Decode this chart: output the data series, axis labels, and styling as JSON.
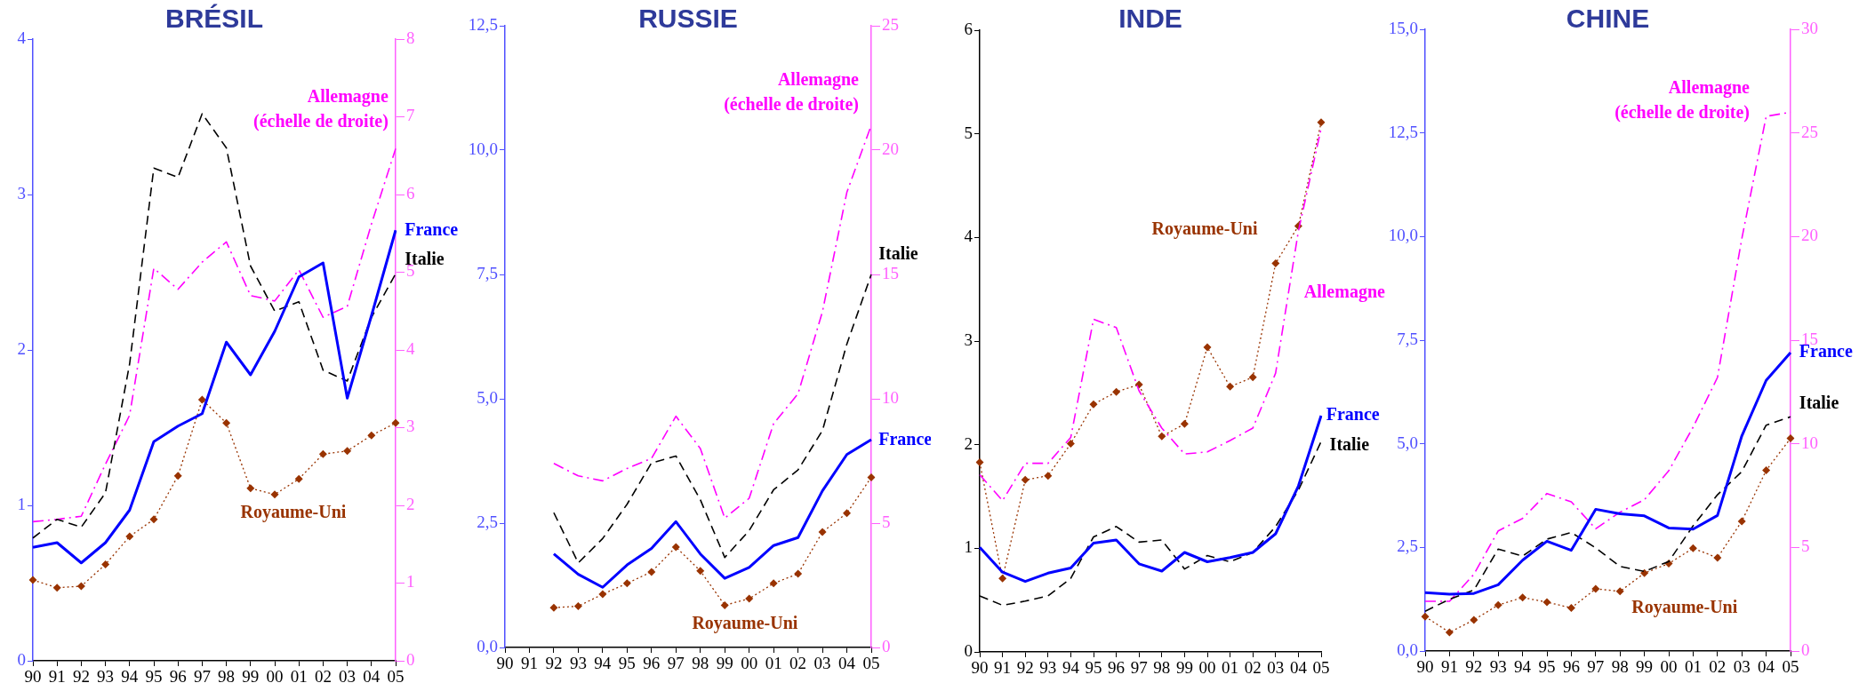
{
  "chart_data": [
    {
      "type": "line",
      "title": "BRÉSIL",
      "categories": [
        "90",
        "91",
        "92",
        "93",
        "94",
        "95",
        "96",
        "97",
        "98",
        "99",
        "00",
        "01",
        "02",
        "03",
        "04",
        "05"
      ],
      "ylim": [
        0,
        4
      ],
      "yticks": [
        0,
        1,
        2,
        3,
        4
      ],
      "y2lim": [
        0,
        8
      ],
      "y2ticks": [
        0,
        1,
        2,
        3,
        4,
        5,
        6,
        7,
        8
      ],
      "grid": false,
      "legend": false,
      "series": [
        {
          "name": "France",
          "color": "#0000ff",
          "line_style": "solid",
          "marker": "none",
          "values": [
            0.73,
            0.76,
            0.63,
            0.76,
            0.97,
            1.41,
            1.51,
            1.59,
            2.05,
            1.84,
            2.12,
            2.47,
            2.56,
            1.69,
            2.22,
            2.77
          ]
        },
        {
          "name": "Italie",
          "color": "#000000",
          "line_style": "dashed",
          "marker": "none",
          "values": [
            0.79,
            0.91,
            0.86,
            1.08,
            1.91,
            3.17,
            3.11,
            3.52,
            3.3,
            2.54,
            2.25,
            2.31,
            1.87,
            1.8,
            2.21,
            2.49
          ]
        },
        {
          "name": "Allemagne (échelle de droite)",
          "color": "#ff00ff",
          "line_style": "dashdot",
          "marker": "none",
          "axis": "y2",
          "values": [
            1.79,
            1.82,
            1.86,
            2.53,
            3.16,
            5.05,
            4.78,
            5.13,
            5.39,
            4.7,
            4.63,
            5.03,
            4.42,
            4.56,
            5.62,
            6.59
          ]
        },
        {
          "name": "Royaume-Uni",
          "color": "#993300",
          "line_style": "dotted",
          "marker": "diamond",
          "values": [
            0.52,
            0.47,
            0.48,
            0.62,
            0.8,
            0.91,
            1.19,
            1.68,
            1.53,
            1.11,
            1.07,
            1.17,
            1.33,
            1.35,
            1.45,
            1.53
          ]
        }
      ]
    },
    {
      "type": "line",
      "title": "RUSSIE",
      "categories": [
        "90",
        "91",
        "92",
        "93",
        "94",
        "95",
        "96",
        "97",
        "98",
        "99",
        "00",
        "01",
        "02",
        "03",
        "04",
        "05"
      ],
      "ylim": [
        0,
        12.5
      ],
      "yticks": [
        {
          "value": 0,
          "label": "0,0"
        },
        {
          "value": 2.5,
          "label": "2,5"
        },
        {
          "value": 5,
          "label": "5,0"
        },
        {
          "value": 7.5,
          "label": "7,5"
        },
        {
          "value": 10,
          "label": "10,0"
        },
        {
          "value": 12.5,
          "label": "12,5"
        }
      ],
      "y2lim": [
        0,
        25
      ],
      "y2ticks": [
        0,
        5,
        10,
        15,
        20,
        25
      ],
      "grid": false,
      "legend": false,
      "series": [
        {
          "name": "France",
          "color": "#0000ff",
          "line_style": "solid",
          "marker": "none",
          "values": [
            null,
            null,
            1.88,
            1.47,
            1.21,
            1.66,
            1.99,
            2.53,
            1.88,
            1.39,
            1.61,
            2.05,
            2.21,
            3.15,
            3.88,
            4.18
          ]
        },
        {
          "name": "Italie",
          "color": "#000000",
          "line_style": "dashed",
          "marker": "none",
          "values": [
            null,
            null,
            2.71,
            1.7,
            2.19,
            2.88,
            3.71,
            3.85,
            2.97,
            1.81,
            2.35,
            3.17,
            3.57,
            4.36,
            6.1,
            7.5
          ]
        },
        {
          "name": "Allemagne (échelle de droite)",
          "color": "#ff00ff",
          "line_style": "dashdot",
          "marker": "none",
          "axis": "y2",
          "values": [
            null,
            null,
            7.4,
            6.9,
            6.7,
            7.2,
            7.6,
            9.3,
            8.0,
            5.2,
            6.0,
            9.0,
            10.2,
            13.5,
            18.3,
            21.0
          ]
        },
        {
          "name": "Royaume-Uni",
          "color": "#993300",
          "line_style": "dotted",
          "marker": "diamond",
          "values": [
            null,
            null,
            0.8,
            0.83,
            1.07,
            1.29,
            1.52,
            2.02,
            1.54,
            0.85,
            0.98,
            1.29,
            1.48,
            2.32,
            2.7,
            3.42
          ]
        }
      ]
    },
    {
      "type": "line",
      "title": "INDE",
      "categories": [
        "90",
        "91",
        "92",
        "93",
        "94",
        "95",
        "96",
        "97",
        "98",
        "99",
        "00",
        "01",
        "02",
        "03",
        "04",
        "05"
      ],
      "ylim": [
        0,
        6
      ],
      "yticks": [
        0,
        1,
        2,
        3,
        4,
        5,
        6
      ],
      "grid": false,
      "legend": false,
      "series": [
        {
          "name": "France",
          "color": "#0000ff",
          "line_style": "solid",
          "marker": "none",
          "values": [
            1.01,
            0.77,
            0.68,
            0.76,
            0.81,
            1.05,
            1.08,
            0.85,
            0.78,
            0.96,
            0.87,
            0.91,
            0.96,
            1.14,
            1.6,
            2.28
          ]
        },
        {
          "name": "Italie",
          "color": "#000000",
          "line_style": "dashed",
          "marker": "none",
          "values": [
            0.54,
            0.45,
            0.49,
            0.54,
            0.71,
            1.11,
            1.21,
            1.06,
            1.08,
            0.8,
            0.93,
            0.87,
            0.96,
            1.21,
            1.56,
            2.03
          ]
        },
        {
          "name": "Allemagne",
          "color": "#ff00ff",
          "line_style": "dashdot",
          "marker": "none",
          "values": [
            1.71,
            1.46,
            1.82,
            1.82,
            2.07,
            3.21,
            3.13,
            2.52,
            2.16,
            1.91,
            1.93,
            2.04,
            2.16,
            2.69,
            4.06,
            5.05
          ]
        },
        {
          "name": "Royaume-Uni",
          "color": "#993300",
          "line_style": "dotted",
          "marker": "diamond",
          "values": [
            1.83,
            0.71,
            1.66,
            1.7,
            2.01,
            2.39,
            2.51,
            2.58,
            2.08,
            2.2,
            2.94,
            2.56,
            2.65,
            3.75,
            4.11,
            5.11
          ]
        }
      ]
    },
    {
      "type": "line",
      "title": "CHINE",
      "categories": [
        "90",
        "91",
        "92",
        "93",
        "94",
        "95",
        "96",
        "97",
        "98",
        "99",
        "00",
        "01",
        "02",
        "03",
        "04",
        "05"
      ],
      "ylim": [
        0,
        15
      ],
      "yticks": [
        {
          "value": 0,
          "label": "0,0"
        },
        {
          "value": 2.5,
          "label": "2,5"
        },
        {
          "value": 5,
          "label": "5,0"
        },
        {
          "value": 7.5,
          "label": "7,5"
        },
        {
          "value": 10,
          "label": "10,0"
        },
        {
          "value": 12.5,
          "label": "12,5"
        },
        {
          "value": 15,
          "label": "15,0"
        }
      ],
      "y2lim": [
        0,
        30
      ],
      "y2ticks": [
        0,
        5,
        10,
        15,
        20,
        25,
        30
      ],
      "grid": false,
      "legend": false,
      "series": [
        {
          "name": "France",
          "color": "#0000ff",
          "line_style": "solid",
          "marker": "none",
          "values": [
            1.41,
            1.37,
            1.39,
            1.6,
            2.19,
            2.65,
            2.43,
            3.42,
            3.31,
            3.26,
            2.97,
            2.94,
            3.27,
            5.19,
            6.53,
            7.2
          ]
        },
        {
          "name": "Italie",
          "color": "#000000",
          "line_style": "dashed",
          "marker": "none",
          "values": [
            0.96,
            1.25,
            1.47,
            2.46,
            2.29,
            2.7,
            2.86,
            2.49,
            2.04,
            1.92,
            2.16,
            3.02,
            3.77,
            4.33,
            5.45,
            5.65
          ]
        },
        {
          "name": "Allemagne (échelle de droite)",
          "color": "#ff00ff",
          "line_style": "dashdot",
          "marker": "none",
          "axis": "y2",
          "values": [
            2.4,
            2.4,
            3.7,
            5.8,
            6.4,
            7.6,
            7.2,
            5.9,
            6.7,
            7.3,
            8.7,
            10.8,
            13.2,
            19.9,
            25.8,
            26.0
          ]
        },
        {
          "name": "Royaume-Uni",
          "color": "#993300",
          "line_style": "dotted",
          "marker": "diamond",
          "values": [
            0.83,
            0.45,
            0.75,
            1.11,
            1.29,
            1.18,
            1.04,
            1.5,
            1.44,
            1.88,
            2.11,
            2.48,
            2.25,
            3.13,
            4.36,
            5.13
          ]
        }
      ]
    }
  ]
}
